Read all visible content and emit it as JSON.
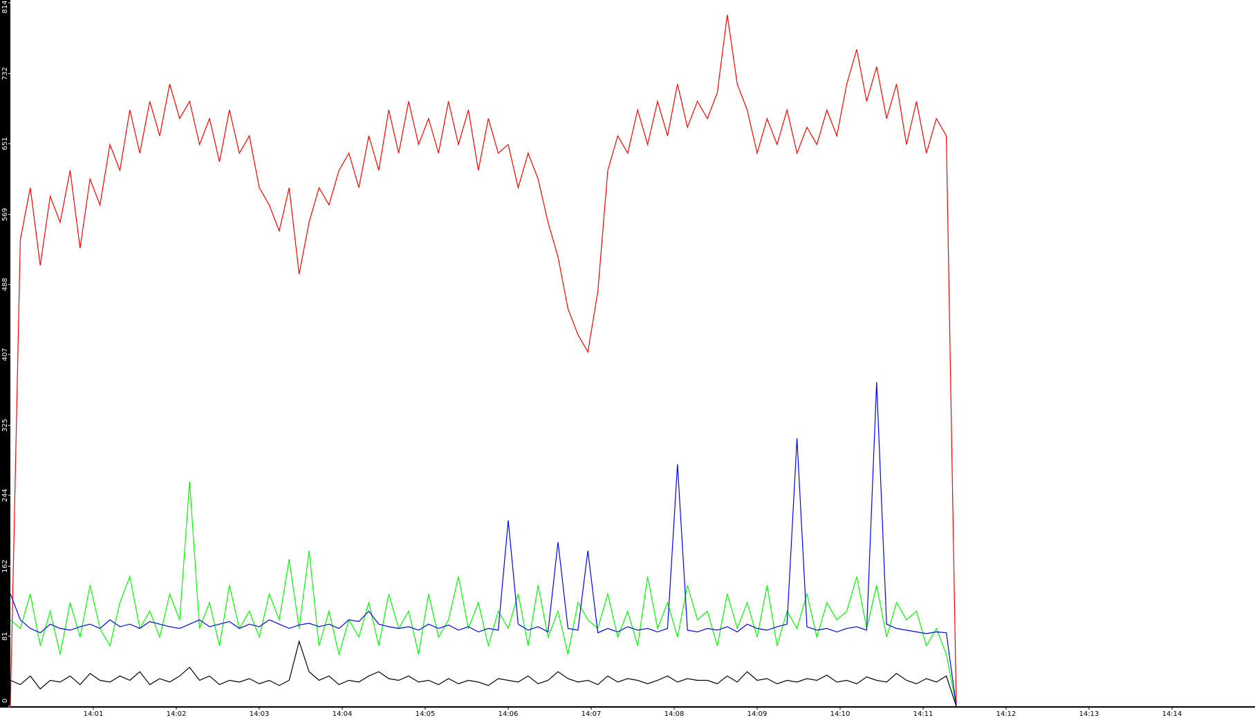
{
  "chart_data": {
    "type": "line",
    "xlim": [
      0,
      15
    ],
    "ylim": [
      0,
      814
    ],
    "yticks": [
      0,
      81,
      162,
      244,
      325,
      407,
      488,
      569,
      651,
      732,
      814
    ],
    "xticks": [
      {
        "value": 1,
        "label": "14:01"
      },
      {
        "value": 2,
        "label": "14:02"
      },
      {
        "value": 3,
        "label": "14:03"
      },
      {
        "value": 4,
        "label": "14:04"
      },
      {
        "value": 5,
        "label": "14:05"
      },
      {
        "value": 6,
        "label": "14:06"
      },
      {
        "value": 7,
        "label": "14:07"
      },
      {
        "value": 8,
        "label": "14:08"
      },
      {
        "value": 9,
        "label": "14:09"
      },
      {
        "value": 10,
        "label": "14:10"
      },
      {
        "value": 11,
        "label": "14:11"
      },
      {
        "value": 12,
        "label": "14:12"
      },
      {
        "value": 13,
        "label": "14:13"
      },
      {
        "value": 14,
        "label": "14:14"
      }
    ],
    "x": [
      0,
      0.12,
      0.24,
      0.36,
      0.48,
      0.6,
      0.72,
      0.84,
      0.96,
      1.08,
      1.2,
      1.32,
      1.44,
      1.56,
      1.68,
      1.8,
      1.92,
      2.04,
      2.16,
      2.28,
      2.4,
      2.52,
      2.64,
      2.76,
      2.88,
      3,
      3.12,
      3.24,
      3.36,
      3.48,
      3.6,
      3.72,
      3.84,
      3.96,
      4.08,
      4.2,
      4.32,
      4.44,
      4.56,
      4.68,
      4.8,
      4.92,
      5.04,
      5.16,
      5.28,
      5.4,
      5.52,
      5.64,
      5.76,
      5.88,
      6,
      6.12,
      6.24,
      6.36,
      6.48,
      6.6,
      6.72,
      6.84,
      6.96,
      7.08,
      7.2,
      7.32,
      7.44,
      7.56,
      7.68,
      7.8,
      7.92,
      8.04,
      8.16,
      8.28,
      8.4,
      8.52,
      8.64,
      8.76,
      8.88,
      9,
      9.12,
      9.24,
      9.36,
      9.48,
      9.6,
      9.72,
      9.84,
      9.96,
      10.08,
      10.2,
      10.32,
      10.44,
      10.56,
      10.68,
      10.8,
      10.92,
      11.04,
      11.16,
      11.28,
      11.4
    ],
    "series": [
      {
        "color": "#ff0000",
        "values": [
          0,
          540,
          600,
          510,
          590,
          560,
          620,
          530,
          610,
          580,
          650,
          620,
          690,
          640,
          700,
          660,
          720,
          680,
          700,
          650,
          680,
          630,
          690,
          640,
          660,
          600,
          580,
          550,
          600,
          500,
          560,
          600,
          580,
          620,
          640,
          600,
          660,
          620,
          690,
          640,
          700,
          650,
          680,
          640,
          700,
          650,
          690,
          620,
          680,
          640,
          650,
          600,
          640,
          610,
          560,
          520,
          460,
          430,
          410,
          480,
          620,
          660,
          640,
          690,
          650,
          700,
          660,
          720,
          670,
          700,
          680,
          710,
          800,
          720,
          690,
          640,
          680,
          650,
          690,
          640,
          670,
          650,
          690,
          660,
          720,
          760,
          700,
          740,
          680,
          720,
          650,
          700,
          640,
          680,
          660,
          0
        ]
      },
      {
        "color": "#00ff00",
        "values": [
          100,
          90,
          130,
          70,
          110,
          60,
          120,
          80,
          140,
          90,
          70,
          120,
          150,
          90,
          110,
          80,
          130,
          100,
          260,
          90,
          120,
          70,
          140,
          90,
          110,
          80,
          130,
          100,
          170,
          90,
          180,
          70,
          110,
          60,
          100,
          80,
          120,
          70,
          130,
          90,
          110,
          60,
          130,
          80,
          100,
          150,
          90,
          120,
          70,
          110,
          90,
          130,
          70,
          140,
          80,
          110,
          60,
          120,
          100,
          90,
          130,
          80,
          110,
          70,
          150,
          90,
          120,
          80,
          140,
          100,
          110,
          70,
          130,
          90,
          120,
          80,
          140,
          70,
          110,
          90,
          130,
          80,
          120,
          100,
          110,
          150,
          90,
          140,
          80,
          120,
          100,
          110,
          70,
          90,
          60,
          0
        ]
      },
      {
        "color": "#0000ff",
        "values": [
          130,
          100,
          90,
          85,
          95,
          90,
          88,
          92,
          95,
          90,
          100,
          92,
          95,
          90,
          98,
          95,
          92,
          90,
          95,
          100,
          92,
          95,
          98,
          90,
          95,
          92,
          100,
          95,
          90,
          94,
          96,
          92,
          95,
          90,
          100,
          98,
          110,
          95,
          92,
          90,
          92,
          88,
          95,
          90,
          94,
          88,
          92,
          86,
          90,
          88,
          215,
          95,
          88,
          92,
          86,
          190,
          90,
          88,
          180,
          85,
          90,
          86,
          92,
          88,
          90,
          86,
          90,
          280,
          88,
          86,
          90,
          88,
          92,
          86,
          95,
          90,
          88,
          92,
          95,
          310,
          92,
          88,
          90,
          86,
          90,
          92,
          88,
          375,
          95,
          90,
          88,
          86,
          84,
          86,
          85,
          0
        ]
      },
      {
        "color": "#000000",
        "values": [
          30,
          25,
          35,
          20,
          30,
          28,
          35,
          25,
          38,
          30,
          28,
          35,
          30,
          40,
          25,
          32,
          28,
          35,
          45,
          30,
          35,
          25,
          30,
          28,
          32,
          26,
          30,
          24,
          30,
          75,
          40,
          30,
          35,
          25,
          30,
          28,
          35,
          40,
          32,
          30,
          35,
          28,
          30,
          25,
          32,
          26,
          30,
          28,
          24,
          32,
          30,
          28,
          35,
          26,
          30,
          40,
          32,
          28,
          30,
          25,
          35,
          28,
          32,
          30,
          26,
          30,
          35,
          28,
          32,
          30,
          30,
          26,
          35,
          28,
          40,
          30,
          32,
          26,
          30,
          28,
          32,
          30,
          36,
          28,
          30,
          26,
          34,
          30,
          28,
          38,
          30,
          26,
          32,
          28,
          35,
          0
        ]
      }
    ]
  }
}
